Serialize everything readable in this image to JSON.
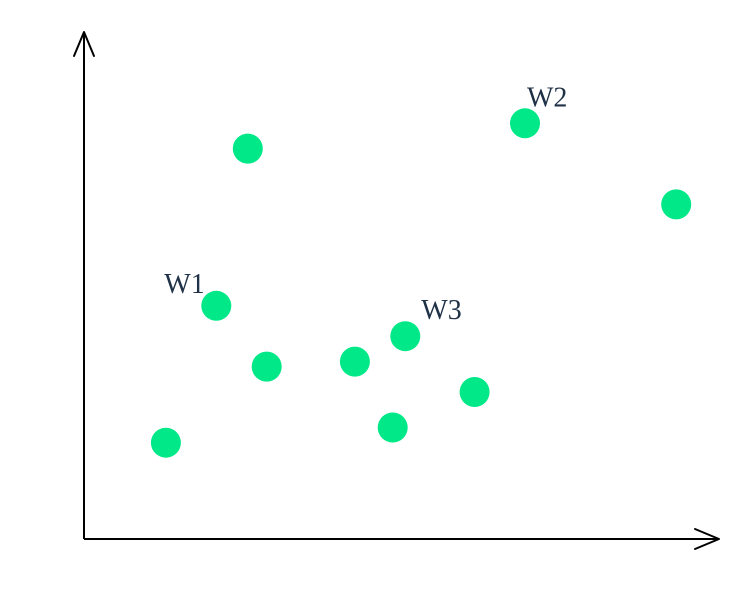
{
  "chart_data": {
    "type": "scatter",
    "title": "",
    "xlabel": "",
    "ylabel": "",
    "xlim": [
      0,
      10
    ],
    "ylim": [
      0,
      10
    ],
    "grid": false,
    "legend": "none",
    "marker_color": "#00e887",
    "label_color": "#1f3147",
    "points": [
      {
        "x": 1.3,
        "y": 1.9,
        "label": ""
      },
      {
        "x": 2.1,
        "y": 4.6,
        "label": "W1"
      },
      {
        "x": 2.6,
        "y": 7.7,
        "label": ""
      },
      {
        "x": 2.9,
        "y": 3.4,
        "label": ""
      },
      {
        "x": 4.3,
        "y": 3.5,
        "label": ""
      },
      {
        "x": 4.9,
        "y": 2.2,
        "label": ""
      },
      {
        "x": 5.1,
        "y": 4.0,
        "label": "W3"
      },
      {
        "x": 6.2,
        "y": 2.9,
        "label": ""
      },
      {
        "x": 7.0,
        "y": 8.2,
        "label": "W2"
      },
      {
        "x": 9.4,
        "y": 6.6,
        "label": ""
      }
    ]
  }
}
